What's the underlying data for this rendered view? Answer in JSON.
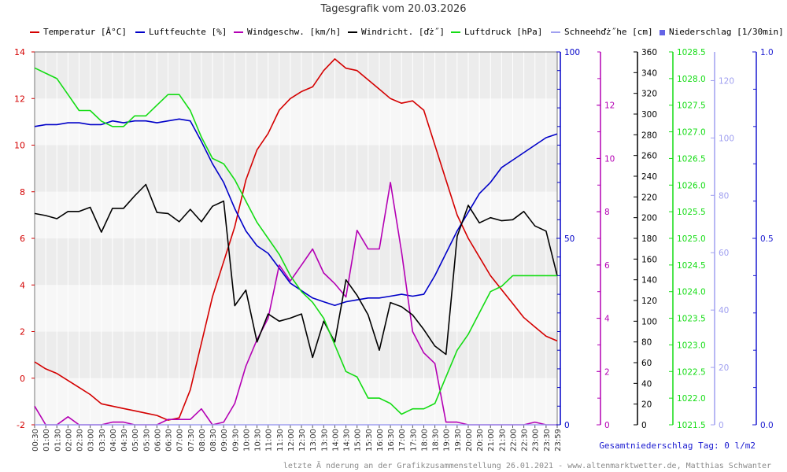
{
  "title": "Tagesgrafik vom 20.03.2026",
  "legend": [
    {
      "label": "Temperatur [Â°C]",
      "color": "#d40000",
      "kind": "line"
    },
    {
      "label": "Luftfeuchte [%]",
      "color": "#0000c8",
      "kind": "line"
    },
    {
      "label": "Windgeschw. [km/h]",
      "color": "#b400b4",
      "kind": "line"
    },
    {
      "label": "Windricht. [ďż˝]",
      "color": "#000000",
      "kind": "line"
    },
    {
      "label": "Luftdruck [hPa]",
      "color": "#14dc14",
      "kind": "line"
    },
    {
      "label": "Schneehďż˝he [cm]",
      "color": "#a0a0f0",
      "kind": "line"
    },
    {
      "label": "Niederschlag [1/30min]",
      "color": "#6464e6",
      "kind": "box"
    }
  ],
  "total_text": "Gesamtniederschlag Tag: 0 l/m2",
  "footer_text": "letzte Ă nderung an der Grafikzusammenstellung 26.01.2021 - www.altenmarktwetter.de, Matthias Schwanter",
  "chart_data": {
    "type": "line",
    "x": [
      "00:30",
      "01:00",
      "01:30",
      "02:00",
      "02:30",
      "03:00",
      "03:30",
      "04:00",
      "04:30",
      "05:00",
      "05:30",
      "06:00",
      "06:30",
      "07:00",
      "07:30",
      "08:00",
      "08:30",
      "09:00",
      "09:30",
      "10:00",
      "10:30",
      "11:00",
      "11:30",
      "12:00",
      "12:30",
      "13:00",
      "13:30",
      "14:00",
      "14:30",
      "15:00",
      "15:30",
      "16:00",
      "16:30",
      "17:00",
      "17:30",
      "18:00",
      "18:30",
      "19:00",
      "19:30",
      "20:00",
      "20:30",
      "21:00",
      "21:30",
      "22:00",
      "22:30",
      "23:00",
      "23:30",
      "23:59"
    ],
    "axes": [
      {
        "id": "temp",
        "label": "Temperatur [Â°C]",
        "range": [
          -2,
          14
        ],
        "ticks": [
          "-2",
          "0",
          "2",
          "4",
          "6",
          "8",
          "10",
          "12",
          "14"
        ],
        "color": "#d40000"
      },
      {
        "id": "hum",
        "label": "Luftfeuchte [%]",
        "range": [
          0,
          100
        ],
        "ticks": [
          "0",
          "50",
          "100"
        ],
        "color": "#0000c8"
      },
      {
        "id": "wind",
        "label": "Windgeschw. [km/h]",
        "range": [
          0,
          14
        ],
        "ticks": [
          "0",
          "2",
          "4",
          "6",
          "8",
          "10",
          "12"
        ],
        "color": "#b400b4"
      },
      {
        "id": "dir",
        "label": "Windricht. [ďż˝]",
        "range": [
          0,
          360
        ],
        "ticks": [
          "0",
          "20",
          "40",
          "60",
          "80",
          "100",
          "120",
          "140",
          "160",
          "180",
          "200",
          "220",
          "240",
          "260",
          "280",
          "300",
          "320",
          "340",
          "360"
        ],
        "color": "#000000"
      },
      {
        "id": "press",
        "label": "Luftdruck [hPa]",
        "range": [
          1021.5,
          1028.5
        ],
        "ticks": [
          "1021.5",
          "1022.0",
          "1022.5",
          "1023.0",
          "1023.5",
          "1024.0",
          "1024.5",
          "1025.0",
          "1025.5",
          "1026.0",
          "1026.5",
          "1027.0",
          "1027.5",
          "1028.0",
          "1028.5"
        ],
        "color": "#14dc14"
      },
      {
        "id": "snow",
        "label": "Schneehďż˝he [cm]",
        "range": [
          0,
          130
        ],
        "ticks": [
          "0",
          "20",
          "40",
          "60",
          "80",
          "100",
          "120"
        ],
        "color": "#a0a0f0"
      },
      {
        "id": "rain",
        "label": "Niederschlag [1/30min]",
        "range": [
          0,
          1
        ],
        "ticks": [
          "0.0",
          "0.5",
          "1.0"
        ],
        "color": "#1a1ad0"
      }
    ],
    "series": [
      {
        "name": "Temperatur",
        "axis": "temp",
        "color": "#d40000",
        "values": [
          0.7,
          0.4,
          0.2,
          -0.1,
          -0.4,
          -0.7,
          -1.1,
          -1.2,
          -1.3,
          -1.4,
          -1.5,
          -1.6,
          -1.8,
          -1.7,
          -0.5,
          1.5,
          3.5,
          5.0,
          6.5,
          8.5,
          9.8,
          10.5,
          11.5,
          12.0,
          12.3,
          12.5,
          13.2,
          13.7,
          13.3,
          13.2,
          12.8,
          12.4,
          12.0,
          11.8,
          11.9,
          11.5,
          10.0,
          8.5,
          7.0,
          6.0,
          5.2,
          4.4,
          3.8,
          3.2,
          2.6,
          2.2,
          1.8,
          1.6
        ]
      },
      {
        "name": "Luftfeuchte",
        "axis": "hum",
        "color": "#0000c8",
        "values": [
          80,
          80.5,
          80.5,
          81,
          81,
          80.5,
          80.5,
          81.5,
          81,
          81.5,
          81.5,
          81,
          81.5,
          82,
          81.5,
          76,
          70,
          65,
          58,
          52,
          48,
          46,
          42,
          38,
          36,
          34,
          33,
          32,
          33,
          33.5,
          34,
          34,
          34.5,
          35,
          34.5,
          35,
          40,
          46,
          52,
          57,
          62,
          65,
          69,
          71,
          73,
          75,
          77,
          78
        ]
      },
      {
        "name": "Windgeschw.",
        "axis": "wind",
        "color": "#b400b4",
        "values": [
          0.7,
          0,
          0,
          0.3,
          0,
          0,
          0,
          0.1,
          0.1,
          0,
          0,
          0,
          0.2,
          0.2,
          0.2,
          0.6,
          0,
          0.1,
          0.8,
          2.2,
          3.2,
          4.0,
          6.0,
          5.4,
          6.0,
          6.6,
          5.7,
          5.3,
          4.8,
          7.3,
          6.6,
          6.6,
          9.1,
          6.5,
          3.5,
          2.7,
          2.3,
          0.1,
          0.1,
          0,
          0,
          0,
          0,
          0,
          0,
          0.1,
          0,
          0
        ]
      },
      {
        "name": "Windricht.",
        "axis": "dir",
        "color": "#000000",
        "values": [
          204,
          202,
          199,
          206,
          206,
          210,
          186,
          209,
          209,
          221,
          232,
          205,
          204,
          196,
          208,
          196,
          211,
          216,
          115,
          130,
          80,
          107,
          100,
          103,
          107,
          65,
          100,
          80,
          140,
          125,
          106,
          72,
          118,
          114,
          106,
          92,
          76,
          68,
          182,
          212,
          195,
          200,
          197,
          198,
          206,
          192,
          187,
          144
        ]
      },
      {
        "name": "Luftdruck",
        "axis": "press",
        "color": "#14dc14",
        "values": [
          1028.2,
          1028.1,
          1028.0,
          1027.7,
          1027.4,
          1027.4,
          1027.2,
          1027.1,
          1027.1,
          1027.3,
          1027.3,
          1027.5,
          1027.7,
          1027.7,
          1027.4,
          1026.9,
          1026.5,
          1026.4,
          1026.1,
          1025.7,
          1025.3,
          1025.0,
          1024.7,
          1024.3,
          1024.0,
          1023.8,
          1023.5,
          1023.0,
          1022.5,
          1022.4,
          1022.0,
          1022.0,
          1021.9,
          1021.7,
          1021.8,
          1021.8,
          1021.9,
          1022.4,
          1022.9,
          1023.2,
          1023.6,
          1024.0,
          1024.1,
          1024.3,
          1024.3,
          1024.3,
          1024.3,
          1024.3
        ]
      },
      {
        "name": "Schneehďż˝he",
        "axis": "snow",
        "color": "#a0a0f0",
        "values": [
          0,
          0,
          0,
          0,
          0,
          0,
          0,
          0,
          0,
          0,
          0,
          0,
          0,
          0,
          0,
          0,
          0,
          0,
          0,
          0,
          0,
          0,
          0,
          0,
          0,
          0,
          0,
          0,
          0,
          0,
          0,
          0,
          0,
          0,
          0,
          0,
          0,
          0,
          0,
          0,
          0,
          0,
          0,
          0,
          0,
          0,
          0,
          0
        ]
      },
      {
        "name": "Niederschlag",
        "axis": "rain",
        "color": "#6464e6",
        "kind": "bar",
        "values": [
          0,
          0,
          0,
          0,
          0,
          0,
          0,
          0,
          0,
          0,
          0,
          0,
          0,
          0,
          0,
          0,
          0,
          0,
          0,
          0,
          0,
          0,
          0,
          0,
          0,
          0,
          0,
          0,
          0,
          0,
          0,
          0,
          0,
          0,
          0,
          0,
          0,
          0,
          0,
          0,
          0,
          0,
          0,
          0,
          0,
          0,
          0,
          0
        ]
      }
    ],
    "grid": "horizontal-bands"
  }
}
